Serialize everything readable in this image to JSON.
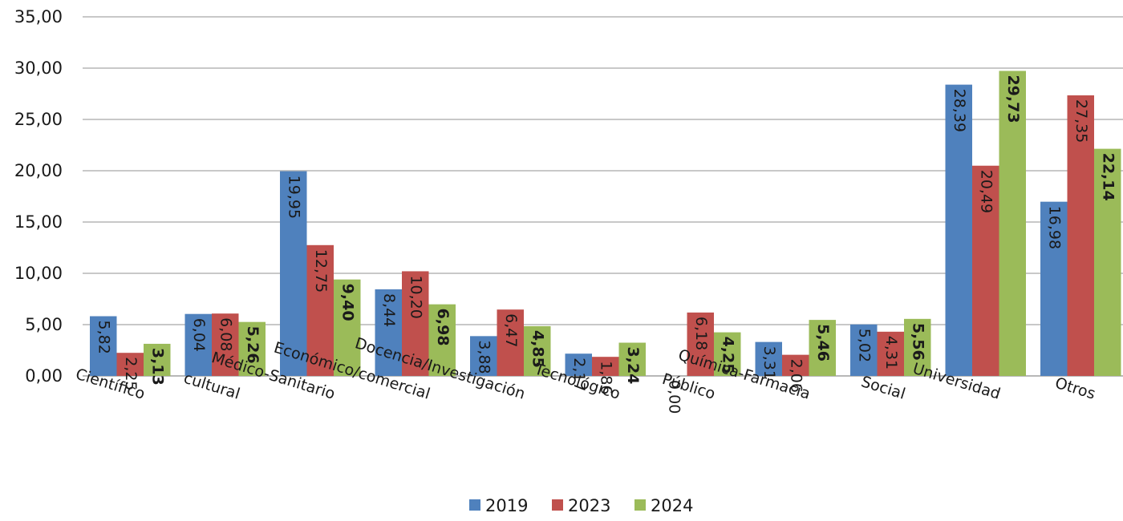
{
  "chart_data": {
    "type": "bar",
    "categories": [
      "Científico",
      "cultural",
      "Médico-Sanitario",
      "Económico/comercial",
      "Docencia/Investigación",
      "Tecnológico",
      "Público",
      "Química-Farmacia",
      "Social",
      "Universidad",
      "Otros"
    ],
    "series": [
      {
        "name": "2019",
        "color": "#4f81bd",
        "values": [
          5.82,
          6.04,
          19.95,
          8.44,
          3.88,
          2.17,
          0.0,
          3.31,
          5.02,
          28.39,
          16.98
        ],
        "labels": [
          "5,82",
          "6,04",
          "19,95",
          "8,44",
          "3,88",
          "2,17",
          "0,00",
          "3,31",
          "5,02",
          "28,39",
          "16,98"
        ],
        "bold": false
      },
      {
        "name": "2023",
        "color": "#c0504d",
        "values": [
          2.25,
          6.08,
          12.75,
          10.2,
          6.47,
          1.86,
          6.18,
          2.06,
          4.31,
          20.49,
          27.35
        ],
        "labels": [
          "2,25",
          "6,08",
          "12,75",
          "10,20",
          "6,47",
          "1,86",
          "6,18",
          "2,06",
          "4,31",
          "20,49",
          "27,35"
        ],
        "bold": false
      },
      {
        "name": "2024",
        "color": "#9bbb59",
        "values": [
          3.13,
          5.26,
          9.4,
          6.98,
          4.85,
          3.24,
          4.25,
          5.46,
          5.56,
          29.73,
          22.14
        ],
        "labels": [
          "3,13",
          "5,26",
          "9,40",
          "6,98",
          "4,85",
          "3,24",
          "4,25",
          "5,46",
          "5,56",
          "29,73",
          "22,14"
        ],
        "bold": true
      }
    ],
    "yticks": [
      "0,00",
      "5,00",
      "10,00",
      "15,00",
      "20,00",
      "25,00",
      "30,00",
      "35,00"
    ],
    "ylim": [
      0,
      35
    ],
    "title": "",
    "xlabel": "",
    "ylabel": "",
    "grid": true,
    "legend_position": "bottom"
  }
}
